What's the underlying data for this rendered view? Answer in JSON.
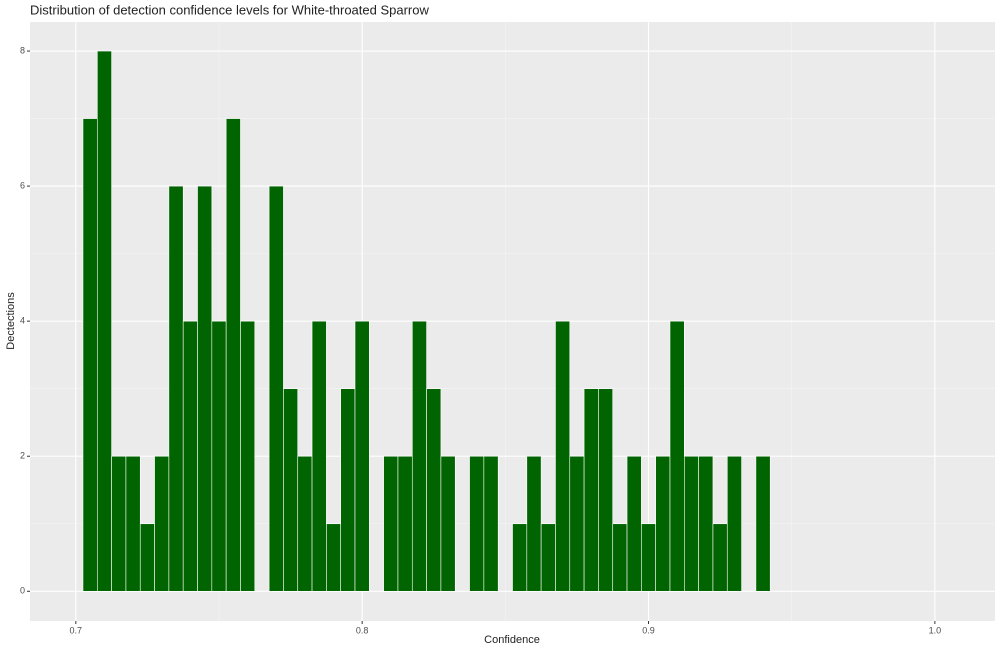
{
  "chart_data": {
    "type": "histogram",
    "title": "Distribution of detection confidence levels for White-throated Sparrow",
    "x_label": "Confidence",
    "y_label": "Dectections",
    "bins": [
      0.7025,
      0.7075,
      0.7125,
      0.7175,
      0.7225,
      0.7275,
      0.7325,
      0.7375,
      0.7425,
      0.7475,
      0.7525,
      0.7575,
      0.7625,
      0.7675,
      0.7725,
      0.7775,
      0.7825,
      0.7875,
      0.7925,
      0.7975,
      0.8025,
      0.8075,
      0.8125,
      0.8175,
      0.8225,
      0.8275,
      0.8325,
      0.8375,
      0.8425,
      0.8475,
      0.8525,
      0.8575,
      0.8625,
      0.8675,
      0.8725,
      0.8775,
      0.8825,
      0.8875,
      0.8925,
      0.8975,
      0.9025,
      0.9075,
      0.9125,
      0.9175,
      0.9225,
      0.9275,
      0.9325,
      0.9375,
      0.9425
    ],
    "values": [
      7,
      8,
      2,
      2,
      1,
      2,
      6,
      4,
      6,
      4,
      7,
      4,
      0,
      6,
      3,
      2,
      4,
      1,
      3,
      4,
      0,
      2,
      2,
      4,
      3,
      2,
      0,
      2,
      2,
      0,
      1,
      2,
      1,
      4,
      2,
      3,
      3,
      1,
      2,
      1,
      2,
      4,
      2,
      2,
      1,
      2,
      0,
      2
    ],
    "color": "#006400",
    "xlim": [
      0.684,
      1.021
    ],
    "xticks": [
      0.7,
      0.8,
      0.9,
      {
        "value": 1,
        "label": "1.0"
      }
    ],
    "ylim": [
      -0.44,
      8.43
    ],
    "yticks": [
      0,
      2,
      4,
      6,
      8
    ],
    "grid": true
  }
}
